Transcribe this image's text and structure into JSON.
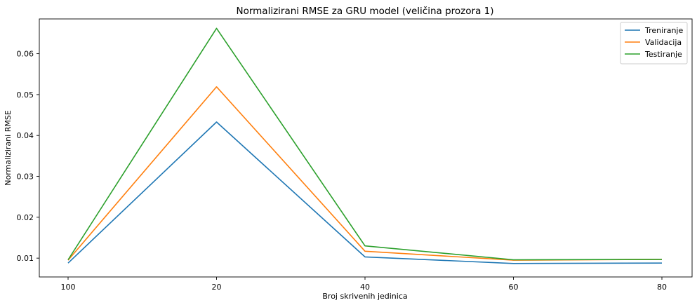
{
  "chart_data": {
    "type": "line",
    "title": "Normalizirani RMSE za GRU model (veličina prozora 1)",
    "xlabel": "Broj skrivenih jedinica",
    "ylabel": "Normalizirani RMSE",
    "categories": [
      "100",
      "20",
      "40",
      "60",
      "80"
    ],
    "y_ticks": [
      "0.01",
      "0.02",
      "0.03",
      "0.04",
      "0.05",
      "0.06"
    ],
    "ylim": [
      0.0054,
      0.0685
    ],
    "legend_position": "top-right",
    "grid": false,
    "series": [
      {
        "name": "Treniranje",
        "color": "#1f77b4",
        "values": [
          0.0088,
          0.0433,
          0.0103,
          0.0087,
          0.0088
        ]
      },
      {
        "name": "Validacija",
        "color": "#ff7f0e",
        "values": [
          0.0095,
          0.0519,
          0.0117,
          0.0095,
          0.0097
        ]
      },
      {
        "name": "Testiranje",
        "color": "#2ca02c",
        "values": [
          0.0096,
          0.0662,
          0.013,
          0.0096,
          0.0097
        ]
      }
    ]
  }
}
